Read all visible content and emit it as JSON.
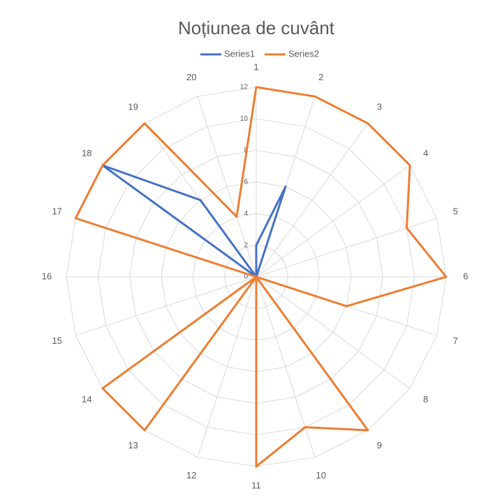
{
  "chart_data": {
    "type": "radar",
    "title": "Noțiunea de cuvânt",
    "categories": [
      "1",
      "2",
      "3",
      "4",
      "5",
      "6",
      "7",
      "8",
      "9",
      "10",
      "11",
      "12",
      "13",
      "14",
      "15",
      "16",
      "17",
      "18",
      "19",
      "20"
    ],
    "series": [
      {
        "name": "Series1",
        "color": "#4472c4",
        "values": [
          2,
          6,
          0,
          0,
          0,
          0,
          0,
          0,
          0,
          0,
          0,
          0,
          0,
          0,
          0,
          0,
          0,
          12,
          6,
          0
        ]
      },
      {
        "name": "Series2",
        "color": "#ed7d31",
        "values": [
          12,
          12,
          12,
          12,
          10,
          12,
          6,
          0,
          12,
          10,
          12,
          0,
          12,
          12,
          0,
          0,
          12,
          12,
          12,
          4
        ]
      }
    ],
    "ylim": [
      0,
      12
    ],
    "yticks": [
      0,
      2,
      4,
      6,
      8,
      10,
      12
    ],
    "grid": true,
    "legend": "top"
  }
}
